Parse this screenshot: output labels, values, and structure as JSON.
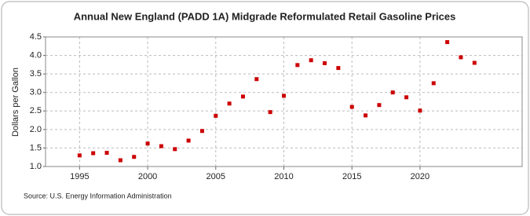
{
  "chart_data": {
    "type": "scatter",
    "title": "Annual New England (PADD 1A) Midgrade Reformulated Retail Gasoline Prices",
    "y_label": "Dollars per Gallon",
    "source": "Source: U.S. Energy Information Administration",
    "color": "#cc0000",
    "grid": true,
    "x": [
      1995,
      1996,
      1997,
      1998,
      1999,
      2000,
      2001,
      2002,
      2003,
      2004,
      2005,
      2006,
      2007,
      2008,
      2009,
      2010,
      2011,
      2012,
      2013,
      2014,
      2015,
      2016,
      2017,
      2018,
      2019,
      2020,
      2021,
      2022,
      2023,
      2024
    ],
    "values": [
      1.3,
      1.36,
      1.37,
      1.17,
      1.26,
      1.62,
      1.55,
      1.47,
      1.7,
      1.96,
      2.37,
      2.7,
      2.89,
      3.36,
      2.47,
      2.91,
      3.74,
      3.87,
      3.79,
      3.66,
      2.61,
      2.38,
      2.66,
      3.0,
      2.87,
      2.51,
      3.25,
      4.36,
      3.95,
      3.8
    ],
    "xlim": [
      1992.5,
      2027.5
    ],
    "xticks": [
      1995,
      2000,
      2005,
      2010,
      2015,
      2020
    ],
    "ylim": [
      1.0,
      4.5
    ],
    "yticks": [
      {
        "value": 1.0,
        "label": "1.0"
      },
      1.5,
      {
        "value": 2.0,
        "label": "2.0"
      },
      2.5,
      {
        "value": 3.0,
        "label": "3.0"
      },
      3.5,
      {
        "value": 4.0,
        "label": "4.0"
      },
      4.5
    ]
  }
}
